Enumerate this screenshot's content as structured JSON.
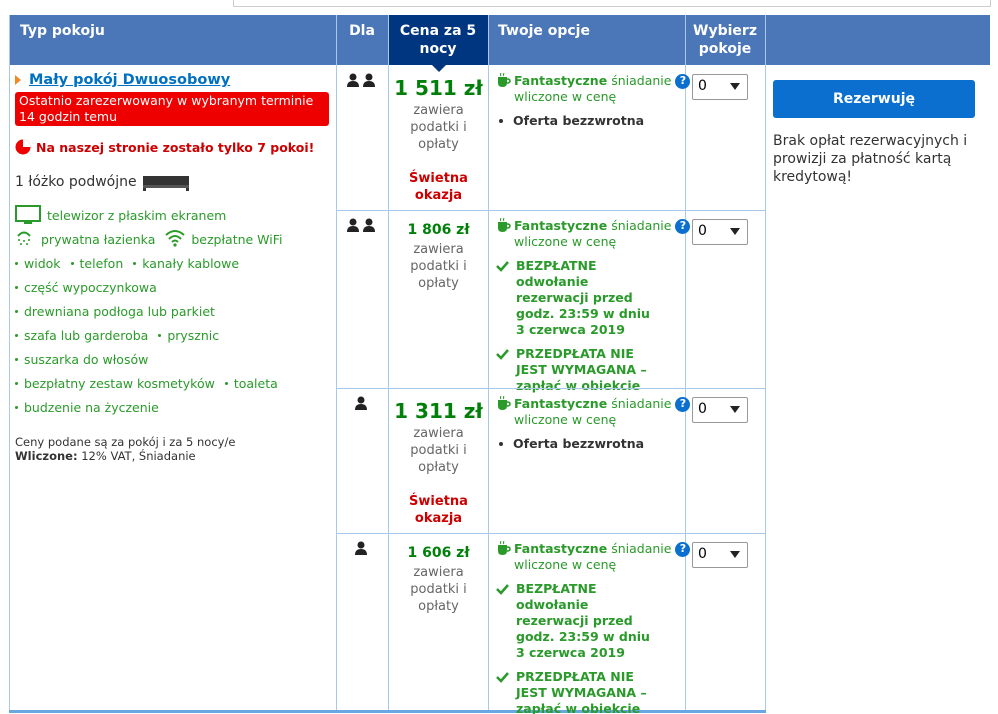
{
  "header": {
    "room_type": "Typ pokoju",
    "for": "Dla",
    "price": "Cena za 5 nocy",
    "options": "Twoje opcje",
    "select": "Wybierz pokoje"
  },
  "room": {
    "name": "Mały pokój Dwuosobowy",
    "badge": "Ostatnio zarezerwowany w wybranym terminie 14 godzin temu",
    "scarcity": "Na naszej stronie zostało tylko 7 pokoi!",
    "bed": "1 łóżko podwójne",
    "facility_lines": [
      [
        {
          "text": "telewizor z płaskim ekranem",
          "icon": "tv"
        }
      ],
      [
        {
          "text": "prywatna łazienka",
          "icon": "shower"
        },
        {
          "text": "bezpłatne WiFi",
          "icon": "wifi"
        }
      ],
      [
        {
          "text": "widok"
        },
        {
          "text": "telefon"
        },
        {
          "text": "kanały kablowe"
        }
      ],
      [
        {
          "text": "część wypoczynkowa"
        }
      ],
      [
        {
          "text": "drewniana podłoga lub parkiet"
        }
      ],
      [
        {
          "text": "szafa lub garderoba"
        },
        {
          "text": "prysznic"
        }
      ],
      [
        {
          "text": "suszarka do włosów"
        }
      ],
      [
        {
          "text": "bezpłatny zestaw kosmetyków"
        },
        {
          "text": "toaleta"
        }
      ],
      [
        {
          "text": "budzenie na życzenie"
        }
      ]
    ],
    "note": "Ceny podane są za pokój i za 5 nocy/e",
    "included_label": "Wliczone:",
    "included": "12% VAT, Śniadanie"
  },
  "offers": [
    {
      "occupancy": 2,
      "price": "1 511 zł",
      "price_note": "zawiera podatki i opłaty",
      "deal": "Świetna okazja",
      "breakfast": {
        "strong": "Fantastyczne",
        "text": "śniadanie",
        "line2": "wliczone w cenę"
      },
      "conditions": [
        {
          "text": "Oferta bezzwrotna",
          "icon": "bullet"
        }
      ],
      "selected": "0"
    },
    {
      "occupancy": 2,
      "price": "1 806 zł",
      "price_note": "zawiera podatki i opłaty",
      "breakfast": {
        "strong": "Fantastyczne",
        "text": "śniadanie",
        "line2": "wliczone w cenę"
      },
      "conditions": [
        {
          "text": "BEZPŁATNE odwołanie rezerwacji przed godz. 23:59 w dniu 3 czerwca 2019",
          "icon": "check"
        },
        {
          "text": "PRZEDPŁATA NIE JEST WYMAGANA – zapłać w obiekcie",
          "icon": "check"
        }
      ],
      "selected": "0"
    },
    {
      "occupancy": 1,
      "price": "1 311 zł",
      "price_note": "zawiera podatki i opłaty",
      "deal": "Świetna okazja",
      "breakfast": {
        "strong": "Fantastyczne",
        "text": "śniadanie",
        "line2": "wliczone w cenę"
      },
      "conditions": [
        {
          "text": "Oferta bezzwrotna",
          "icon": "bullet"
        }
      ],
      "selected": "0"
    },
    {
      "occupancy": 1,
      "price": "1 606 zł",
      "price_note": "zawiera podatki i opłaty",
      "breakfast": {
        "strong": "Fantastyczne",
        "text": "śniadanie",
        "line2": "wliczone w cenę"
      },
      "conditions": [
        {
          "text": "BEZPŁATNE odwołanie rezerwacji przed godz. 23:59 w dniu 3 czerwca 2019",
          "icon": "check"
        },
        {
          "text": "PRZEDPŁATA NIE JEST WYMAGANA – zapłać w obiekcie",
          "icon": "check"
        }
      ],
      "selected": "0"
    }
  ],
  "booking": {
    "button": "Rezerwuję",
    "note": "Brak opłat rezerwacyjnych i prowizji za płatność kartą kredytową!"
  }
}
